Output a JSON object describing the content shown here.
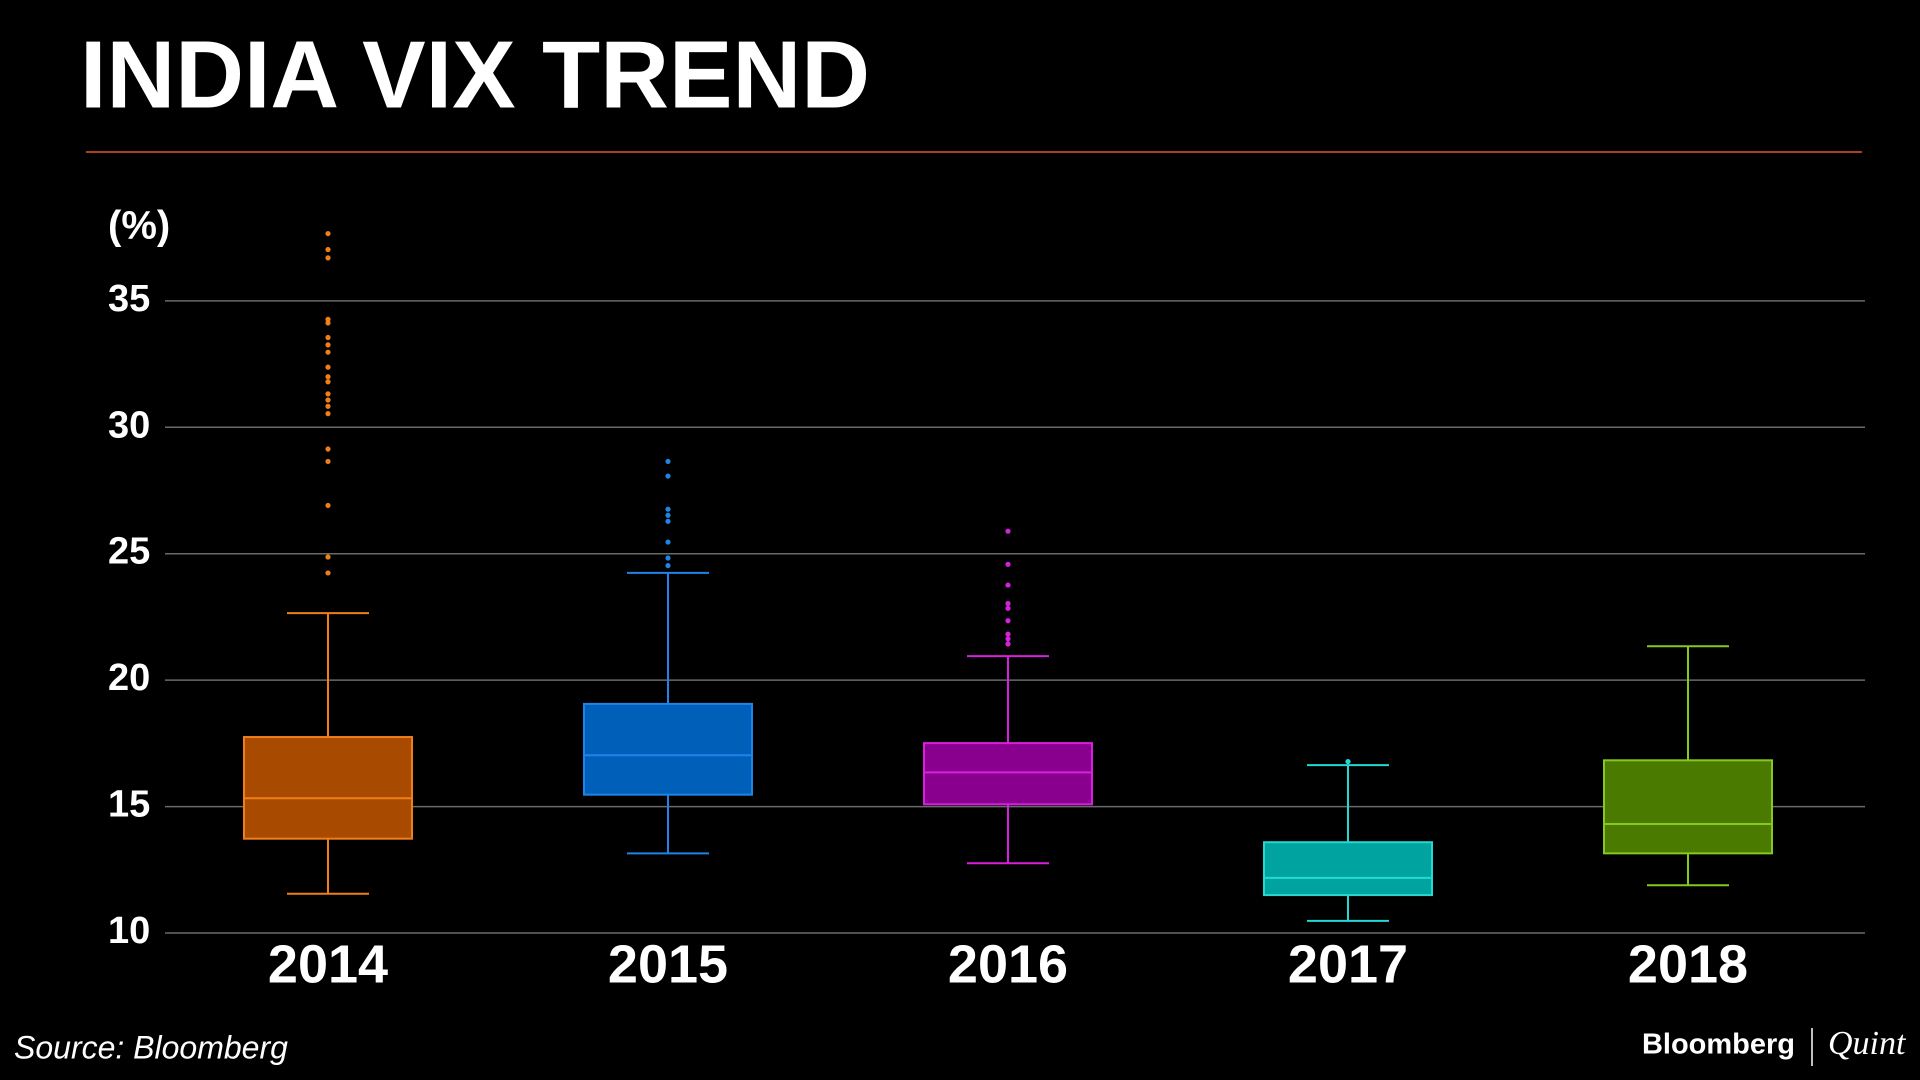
{
  "chart_data": {
    "type": "box",
    "title": "INDIA VIX TREND",
    "y_label": "(%)",
    "source": "Source: Bloomberg",
    "brand": "Bloomberg",
    "brand_partner": "Quint",
    "categories": [
      "2014",
      "2015",
      "2016",
      "2017",
      "2018"
    ],
    "boxes": [
      {
        "color": "#f07f1a",
        "fill": "#a84b00",
        "min": 11.55,
        "q1": 13.73,
        "median": 15.33,
        "q3": 17.75,
        "max": 22.65,
        "outliers": [
          37.66,
          37.03,
          36.7,
          34.27,
          34.13,
          33.55,
          33.26,
          32.97,
          32.38,
          32.0,
          31.8,
          31.32,
          31.08,
          30.83,
          30.54,
          29.14,
          28.65,
          26.91,
          24.87,
          24.24
        ]
      },
      {
        "color": "#1f84e8",
        "fill": "#005fb8",
        "min": 13.15,
        "q1": 15.47,
        "median": 17.03,
        "q3": 19.06,
        "max": 24.24,
        "outliers": [
          28.65,
          28.07,
          26.76,
          26.52,
          26.28,
          25.46,
          24.83,
          24.53
        ]
      },
      {
        "color": "#d81fde",
        "fill": "#8a008e",
        "min": 12.76,
        "q1": 15.09,
        "median": 16.35,
        "q3": 17.51,
        "max": 20.95,
        "outliers": [
          25.89,
          24.58,
          23.76,
          23.03,
          22.84,
          22.35,
          21.82,
          21.63,
          21.43
        ]
      },
      {
        "color": "#25d8d3",
        "fill": "#00a3a0",
        "min": 10.48,
        "q1": 11.5,
        "median": 12.18,
        "q3": 13.59,
        "max": 16.64,
        "outliers": [
          16.78
        ]
      },
      {
        "color": "#85c81f",
        "fill": "#4a7a00",
        "min": 11.89,
        "q1": 13.15,
        "median": 14.31,
        "q3": 16.83,
        "max": 21.34,
        "outliers": []
      }
    ],
    "ylim": [
      10,
      38
    ],
    "yticks": [
      10,
      15,
      20,
      25,
      30,
      35
    ],
    "grid": true
  }
}
